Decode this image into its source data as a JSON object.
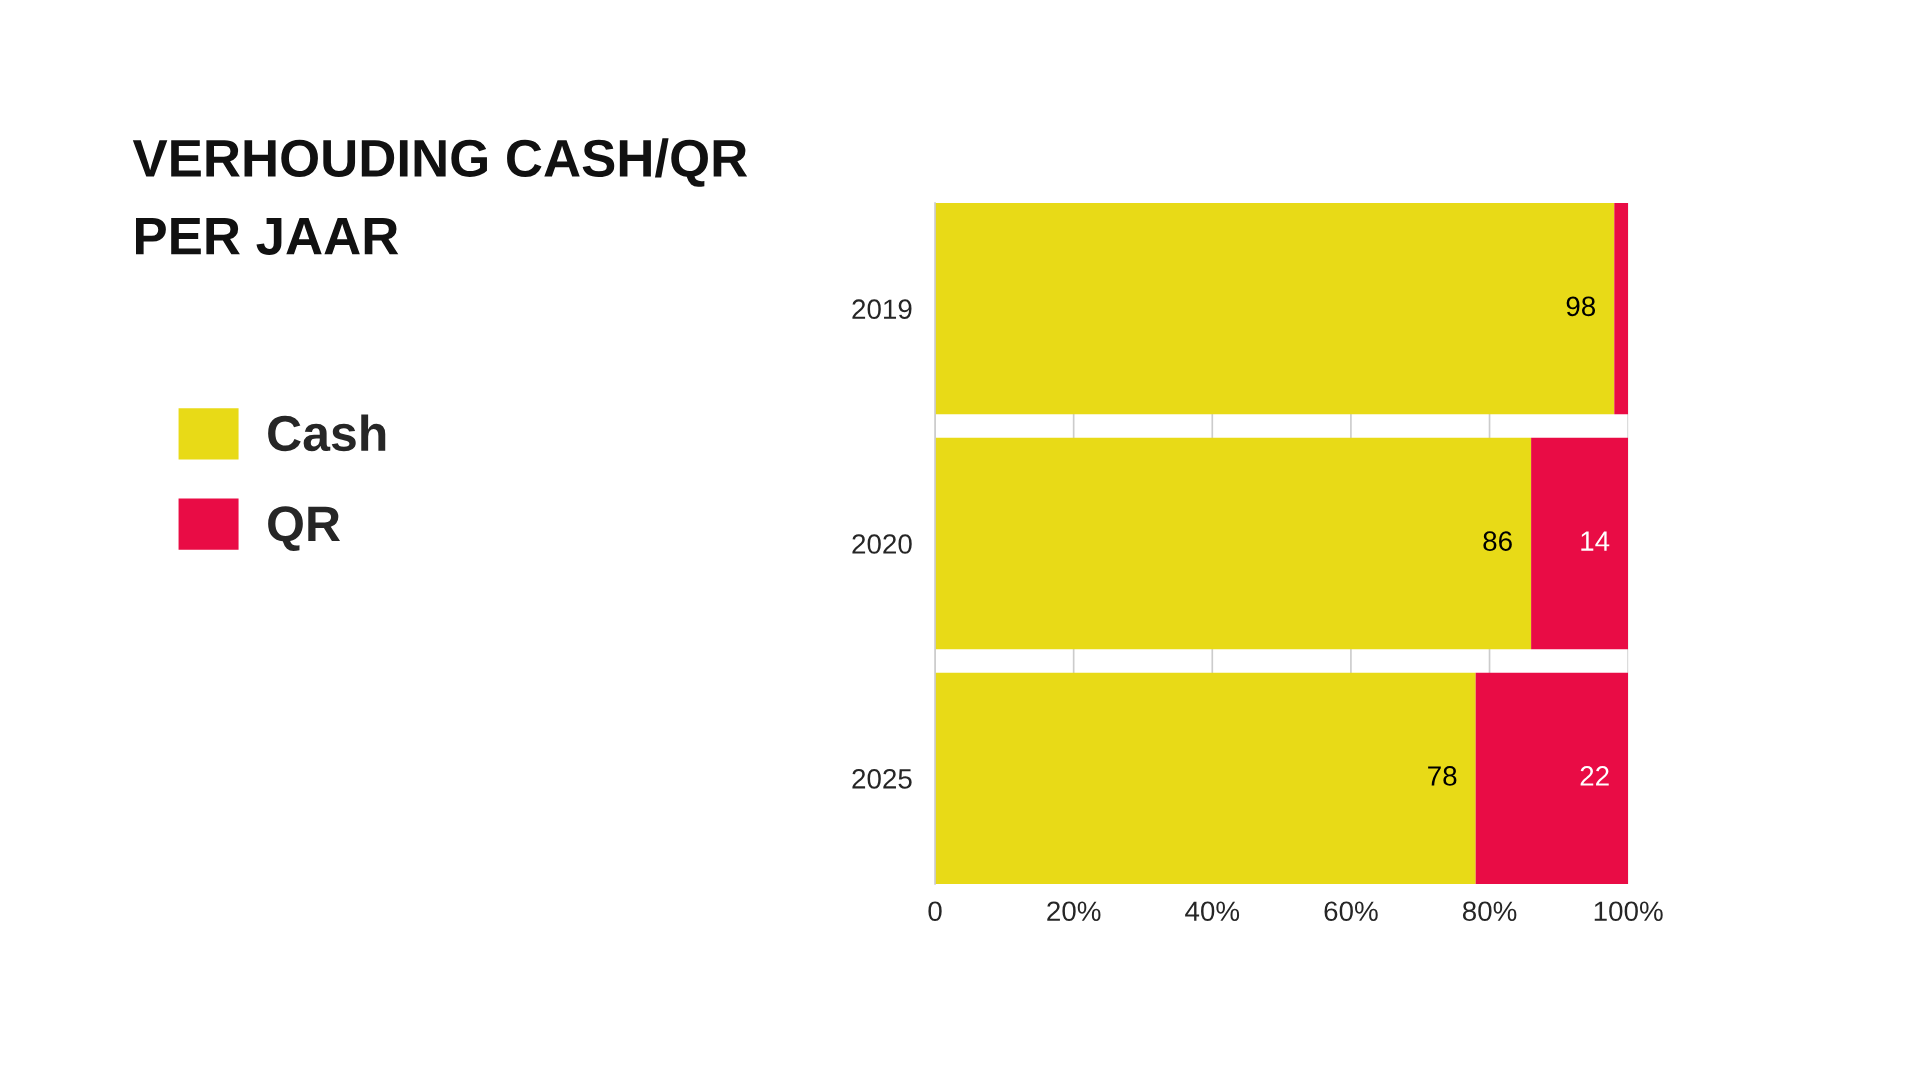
{
  "chart_data": {
    "type": "bar",
    "orientation": "horizontal",
    "stacked": true,
    "title": "VERHOUDING CASH/QR\nPER JAAR",
    "categories": [
      "2019",
      "2020",
      "2025"
    ],
    "series": [
      {
        "name": "Cash",
        "color": "#e8da17",
        "values": [
          98,
          86,
          78
        ],
        "value_labels": [
          "98",
          "86",
          "78"
        ]
      },
      {
        "name": "QR",
        "color": "#e90c45",
        "values": [
          2,
          14,
          22
        ],
        "value_labels": [
          null,
          "14",
          "22"
        ]
      }
    ],
    "xlim": [
      0,
      100
    ],
    "xticks": [
      0,
      {
        "value": 20,
        "label": "20%"
      },
      {
        "value": 40,
        "label": "40%"
      },
      {
        "value": 60,
        "label": "60%"
      },
      {
        "value": 80,
        "label": "80%"
      },
      {
        "value": 100,
        "label": "100%"
      }
    ],
    "grid": "x",
    "legend": "left"
  }
}
